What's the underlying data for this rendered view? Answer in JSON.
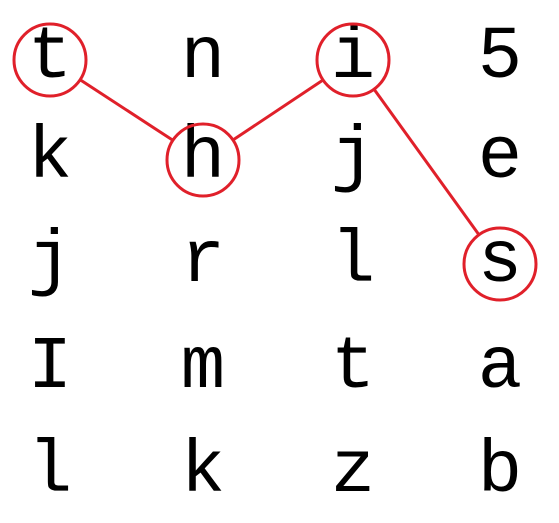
{
  "puzzle": {
    "grid": [
      [
        "t",
        "n",
        "i",
        "5"
      ],
      [
        "k",
        "h",
        "j",
        "e"
      ],
      [
        "j",
        "r",
        "l",
        "s"
      ],
      [
        "I",
        "m",
        "t",
        "a"
      ],
      [
        "l",
        "k",
        "z",
        "b"
      ]
    ],
    "path": [
      {
        "row": 0,
        "col": 0
      },
      {
        "row": 1,
        "col": 1
      },
      {
        "row": 0,
        "col": 2
      },
      {
        "row": 2,
        "col": 3
      }
    ],
    "highlight_color": "#e0202a",
    "text_color": "#000000"
  }
}
